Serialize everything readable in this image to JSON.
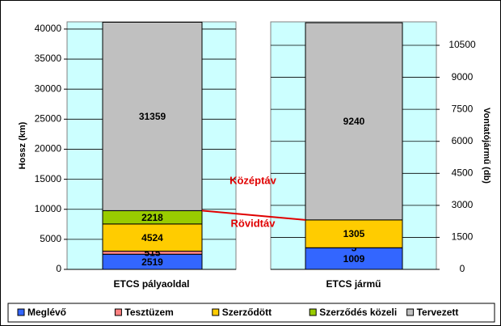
{
  "chart_data": [
    {
      "type": "bar",
      "stacked": true,
      "categories": [
        "ETCS pályaoldal"
      ],
      "y_label": "Hossz (km)",
      "ylim": [
        0,
        41200
      ],
      "yticks": [
        0,
        5000,
        10000,
        15000,
        20000,
        25000,
        30000,
        35000,
        40000
      ],
      "grid": true,
      "annotations": [
        "Középtáv",
        "Rövidtáv"
      ],
      "series": [
        {
          "name": "Meglévő",
          "color": "#3366ff",
          "values": [
            2519
          ]
        },
        {
          "name": "Tesztüzem",
          "color": "#ff8080",
          "values": [
            515
          ]
        },
        {
          "name": "Szerződött",
          "color": "#ffcc00",
          "values": [
            4524
          ]
        },
        {
          "name": "Szerződés közeli",
          "color": "#99cc00",
          "values": [
            2218
          ]
        },
        {
          "name": "Tervezett",
          "color": "#c0c0c0",
          "values": [
            31359
          ]
        }
      ]
    },
    {
      "type": "bar",
      "stacked": true,
      "categories": [
        "ETCS jármű"
      ],
      "y2_label": "Vontatójármű (db)",
      "y2lim": [
        0,
        11600
      ],
      "y2ticks": [
        0,
        1500,
        3000,
        4500,
        6000,
        7500,
        9000,
        10500
      ],
      "grid": true,
      "series": [
        {
          "color": "#3366ff",
          "values": [
            1009
          ],
          "axis": "y2"
        },
        {
          "color": "#ff8080",
          "values": [
            5
          ],
          "axis": "y2"
        },
        {
          "color": "#ffcc00",
          "values": [
            1305
          ],
          "axis": "y2"
        },
        {
          "color": "#c0c0c0",
          "values": [
            9240
          ],
          "axis": "y2"
        }
      ]
    }
  ]
}
